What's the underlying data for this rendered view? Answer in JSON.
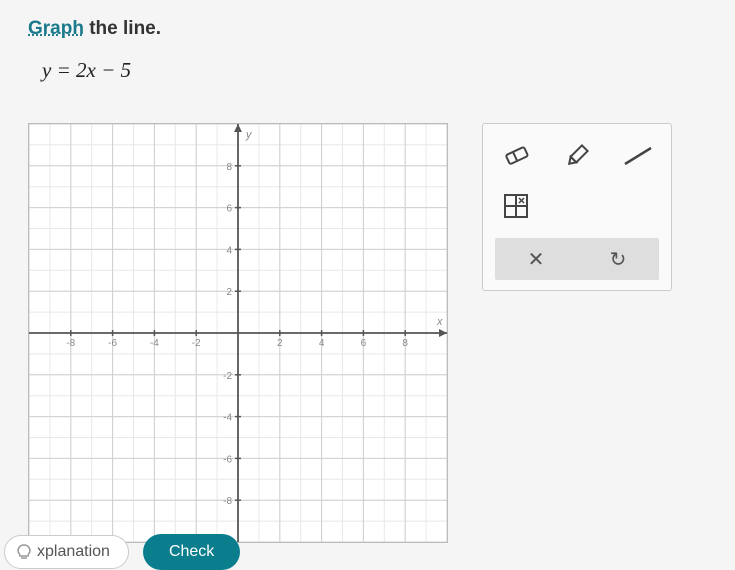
{
  "instruction": {
    "keyword": "Graph",
    "rest": " the line."
  },
  "equation": "y = 2x − 5",
  "graph": {
    "xlim": [
      -10,
      10
    ],
    "ylim": [
      -10,
      10
    ],
    "tick_step": 2,
    "x_ticks": [
      -8,
      -6,
      -4,
      -2,
      2,
      4,
      6,
      8
    ],
    "y_ticks": [
      -8,
      -6,
      -4,
      -2,
      2,
      4,
      6,
      8
    ],
    "x_axis_label": "x",
    "y_axis_label": "y",
    "bg_color": "#ffffff",
    "minor_grid_color": "#e8e8e8",
    "major_grid_color": "#d0d0d0",
    "axis_color": "#555555"
  },
  "toolbox": {
    "tools": [
      {
        "name": "eraser",
        "icon": "eraser-icon"
      },
      {
        "name": "pencil",
        "icon": "pencil-icon"
      },
      {
        "name": "line",
        "icon": "line-icon"
      },
      {
        "name": "grid",
        "icon": "grid-icon"
      }
    ],
    "actions": {
      "clear": "✕",
      "undo": "↻"
    }
  },
  "buttons": {
    "explanation": "xplanation",
    "check": "Check"
  }
}
